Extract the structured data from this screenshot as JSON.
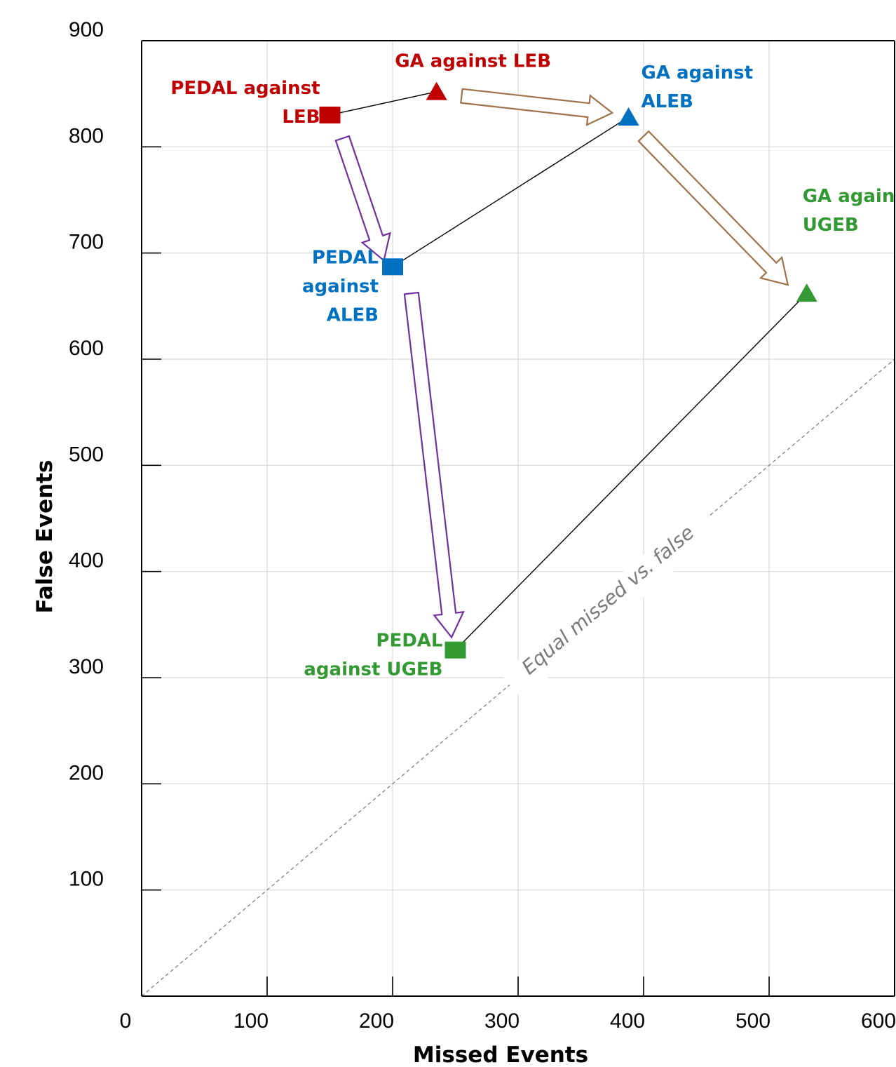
{
  "chart_data": {
    "type": "scatter",
    "xlabel": "Missed Events",
    "ylabel": "False Events",
    "xlim": [
      0,
      600
    ],
    "ylim": [
      0,
      900
    ],
    "x_ticks": [
      0,
      100,
      200,
      300,
      400,
      500,
      600
    ],
    "y_ticks": [
      100,
      200,
      300,
      400,
      500,
      600,
      700,
      800,
      900
    ],
    "grid": true,
    "points": [
      {
        "label": "PEDAL against LEB",
        "lines": [
          "PEDAL against",
          "LEB"
        ],
        "x": 150,
        "y": 830,
        "marker": "square",
        "color": "#C00000"
      },
      {
        "label": "GA against LEB",
        "lines": [
          "GA against LEB"
        ],
        "x": 235,
        "y": 852,
        "marker": "triangle",
        "color": "#C00000"
      },
      {
        "label": "GA against ALEB",
        "lines": [
          "GA against",
          "ALEB"
        ],
        "x": 388,
        "y": 828,
        "marker": "triangle",
        "color": "#0070C0"
      },
      {
        "label": "PEDAL against ALEB",
        "lines": [
          "PEDAL",
          "against",
          "ALEB"
        ],
        "x": 200,
        "y": 687,
        "marker": "square",
        "color": "#0070C0"
      },
      {
        "label": "GA against UGEB",
        "lines": [
          "GA against",
          "UGEB"
        ],
        "x": 530,
        "y": 662,
        "marker": "triangle",
        "color": "#339933"
      },
      {
        "label": "PEDAL against UGEB",
        "lines": [
          "PEDAL",
          "against UGEB"
        ],
        "x": 250,
        "y": 326,
        "marker": "square",
        "color": "#339933"
      }
    ],
    "connector_lines": [
      [
        0,
        1
      ],
      [
        3,
        2
      ],
      [
        5,
        4
      ]
    ],
    "arrows": [
      {
        "from": [
          255,
          848
        ],
        "to": [
          375,
          832
        ],
        "color": "#A0724A"
      },
      {
        "from": [
          400,
          810
        ],
        "to": [
          515,
          670
        ],
        "color": "#A0724A"
      },
      {
        "from": [
          160,
          808
        ],
        "to": [
          193,
          693
        ],
        "color": "#7030A0"
      },
      {
        "from": [
          215,
          662
        ],
        "to": [
          247,
          338
        ],
        "color": "#7030A0"
      }
    ],
    "diagonal": {
      "label": "Equal missed vs. false",
      "from": [
        0,
        0
      ],
      "to": [
        600,
        600
      ]
    }
  },
  "colors": {
    "grid": "#d9d9d9",
    "axis": "#000000",
    "diagonal": "#7f7f7f",
    "connector": "#000000"
  }
}
